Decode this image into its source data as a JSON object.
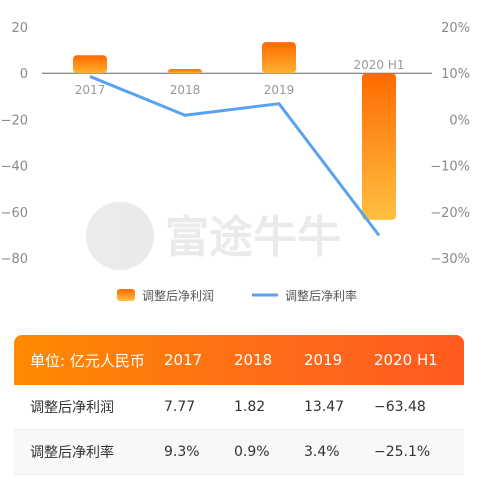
{
  "chart_data": {
    "type": "bar",
    "categories": [
      "2017",
      "2018",
      "2019",
      "2020 H1"
    ],
    "series": [
      {
        "name": "调整后净利润",
        "type": "bar",
        "axis": "left",
        "values": [
          7.77,
          1.82,
          13.47,
          -63.48
        ]
      },
      {
        "name": "调整后净利率",
        "type": "line",
        "axis": "right",
        "values": [
          9.3,
          0.9,
          3.4,
          -25.1
        ]
      }
    ],
    "left_axis": {
      "min": -80,
      "max": 20,
      "ticks": [
        "20",
        "0",
        "−20",
        "−40",
        "−60",
        "−80"
      ]
    },
    "right_axis": {
      "min": -30,
      "max": 20,
      "ticks": [
        "20%",
        "10%",
        "0%",
        "−10%",
        "−20%",
        "−30%"
      ]
    },
    "legend": {
      "position": "bottom"
    },
    "colors": {
      "bar_top": "#ff6a00",
      "bar_bottom": "#ffc040",
      "line": "#5aa2f0",
      "axis": "#666666"
    }
  },
  "watermark": "富途牛牛",
  "table": {
    "headers": [
      "单位: 亿元人民币",
      "2017",
      "2018",
      "2019",
      "2020 H1"
    ],
    "rows": [
      {
        "label": "调整后净利润",
        "values": [
          "7.77",
          "1.82",
          "13.47",
          "−63.48"
        ]
      },
      {
        "label": "调整后净利率",
        "values": [
          "9.3%",
          "0.9%",
          "3.4%",
          "−25.1%"
        ]
      }
    ]
  }
}
